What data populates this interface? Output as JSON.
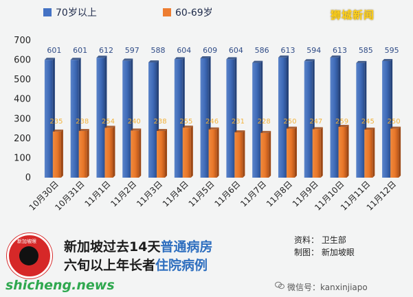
{
  "brand_label": "狮城新闻",
  "chart_data": {
    "type": "bar",
    "categories": [
      "10月30日",
      "10月31日",
      "11月1日",
      "11月2日",
      "11月3日",
      "11月4日",
      "11月5日",
      "11月6日",
      "11月7日",
      "11月8日",
      "11月9日",
      "11月10日",
      "11月11日",
      "11月12日"
    ],
    "series": [
      {
        "name": "70岁以上",
        "color": "#4472c4",
        "values": [
          601,
          601,
          612,
          597,
          588,
          604,
          609,
          604,
          586,
          613,
          594,
          613,
          585,
          595
        ]
      },
      {
        "name": "60-69岁",
        "color": "#ed7d31",
        "values": [
          235,
          238,
          254,
          240,
          238,
          255,
          246,
          231,
          228,
          250,
          247,
          259,
          245,
          250
        ]
      }
    ],
    "ylim": [
      0,
      700
    ],
    "yticks": [
      0,
      100,
      200,
      300,
      400,
      500,
      600,
      700
    ],
    "legend_position": "top-left",
    "grid": false
  },
  "footer": {
    "title_line1_prefix": "新加坡过去14天",
    "title_line1_highlight": "普通病房",
    "title_line2_prefix": "六旬以上年长者",
    "title_line2_highlight": "住院病例",
    "source_line": "资料：  卫生部",
    "maker_line": "制图：  新加坡眼",
    "badge_text": "新加坡眼",
    "website": "shicheng.news",
    "wechat": "微信号：kanxinjiapo"
  }
}
